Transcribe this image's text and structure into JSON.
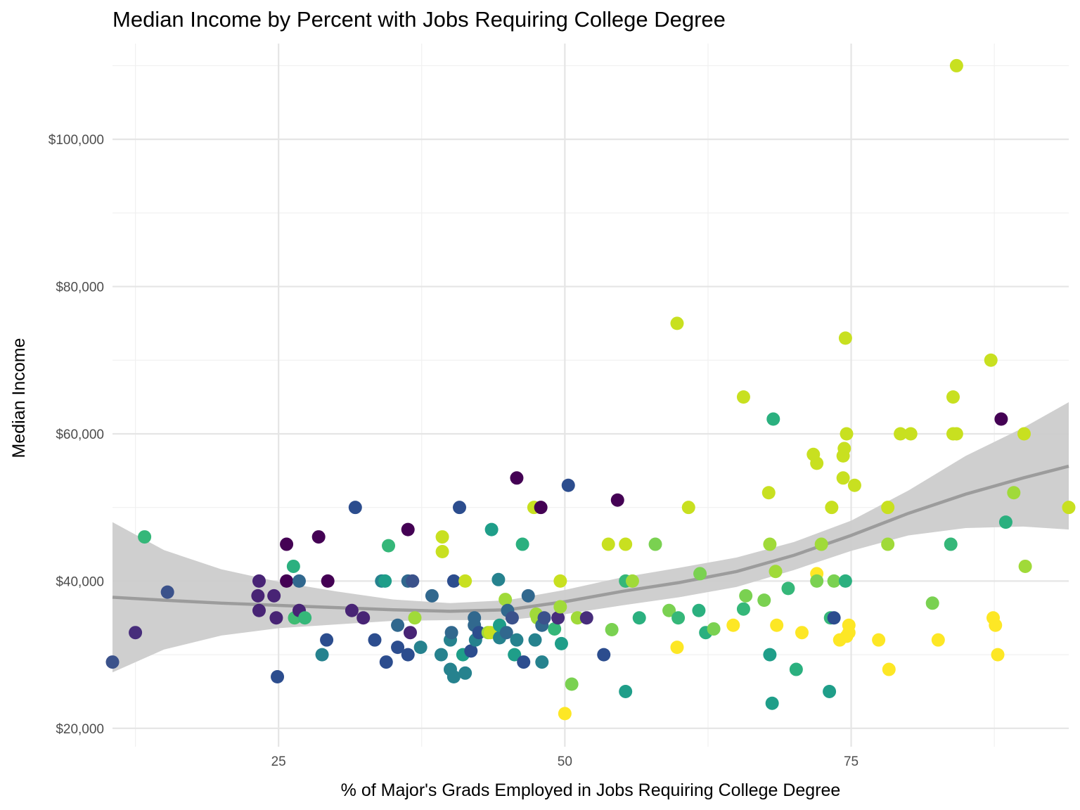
{
  "chart_data": {
    "type": "scatter",
    "title": "Median Income by Percent with Jobs Requiring College Degree",
    "xlabel": "% of Major's Grads Employed in Jobs Requiring College Degree",
    "ylabel": "Median Income",
    "xlim": [
      10.5,
      94
    ],
    "ylim": [
      17500,
      113000
    ],
    "x_ticks": [
      25,
      50,
      75
    ],
    "x_tick_labels": [
      "25",
      "50",
      "75"
    ],
    "y_ticks": [
      20000,
      40000,
      60000,
      80000,
      100000
    ],
    "y_tick_labels": [
      "$20,000",
      "$40,000",
      "$60,000",
      "$80,000",
      "$100,000"
    ],
    "grid": true,
    "legend": "none",
    "smooth_color": "#999999",
    "band_color": "#cccccc",
    "points": [
      {
        "x": 10.5,
        "y": 29000,
        "color": "#3b528b"
      },
      {
        "x": 12.5,
        "y": 33000,
        "color": "#472d7b"
      },
      {
        "x": 13.3,
        "y": 46000,
        "color": "#35b779"
      },
      {
        "x": 15.3,
        "y": 38500,
        "color": "#3b528b"
      },
      {
        "x": 23.2,
        "y": 38000,
        "color": "#482475"
      },
      {
        "x": 23.3,
        "y": 36000,
        "color": "#482475"
      },
      {
        "x": 23.3,
        "y": 40000,
        "color": "#482475"
      },
      {
        "x": 24.6,
        "y": 38000,
        "color": "#482475"
      },
      {
        "x": 24.8,
        "y": 35000,
        "color": "#482475"
      },
      {
        "x": 24.9,
        "y": 27000,
        "color": "#2c4d8e"
      },
      {
        "x": 25.7,
        "y": 45000,
        "color": "#440154"
      },
      {
        "x": 25.7,
        "y": 40000,
        "color": "#440154"
      },
      {
        "x": 26.3,
        "y": 42000,
        "color": "#2bb07f"
      },
      {
        "x": 26.4,
        "y": 35000,
        "color": "#3fbc73"
      },
      {
        "x": 26.8,
        "y": 40000,
        "color": "#31688e"
      },
      {
        "x": 26.8,
        "y": 36000,
        "color": "#482475"
      },
      {
        "x": 27.3,
        "y": 35000,
        "color": "#35b779"
      },
      {
        "x": 28.5,
        "y": 46000,
        "color": "#440154"
      },
      {
        "x": 28.8,
        "y": 30000,
        "color": "#26828e"
      },
      {
        "x": 29.2,
        "y": 32000,
        "color": "#2c4d8e"
      },
      {
        "x": 29.3,
        "y": 40000,
        "color": "#440154"
      },
      {
        "x": 31.4,
        "y": 36000,
        "color": "#482475"
      },
      {
        "x": 31.7,
        "y": 50000,
        "color": "#2c4d8e"
      },
      {
        "x": 32.4,
        "y": 35000,
        "color": "#482475"
      },
      {
        "x": 33.4,
        "y": 32000,
        "color": "#2c4d8e"
      },
      {
        "x": 34.0,
        "y": 40000,
        "color": "#26828e"
      },
      {
        "x": 34.3,
        "y": 40000,
        "color": "#1f9e89"
      },
      {
        "x": 34.4,
        "y": 29000,
        "color": "#2c4d8e"
      },
      {
        "x": 34.6,
        "y": 44800,
        "color": "#35b779"
      },
      {
        "x": 35.4,
        "y": 34000,
        "color": "#31688e"
      },
      {
        "x": 35.4,
        "y": 31000,
        "color": "#2c4d8e"
      },
      {
        "x": 36.3,
        "y": 47000,
        "color": "#440154"
      },
      {
        "x": 36.3,
        "y": 40000,
        "color": "#31688e"
      },
      {
        "x": 36.3,
        "y": 30000,
        "color": "#2c4d8e"
      },
      {
        "x": 36.5,
        "y": 33000,
        "color": "#482475"
      },
      {
        "x": 36.7,
        "y": 40000,
        "color": "#3b528b"
      },
      {
        "x": 36.9,
        "y": 35000,
        "color": "#a0da39"
      },
      {
        "x": 37.4,
        "y": 31000,
        "color": "#26828e"
      },
      {
        "x": 38.4,
        "y": 38000,
        "color": "#31688e"
      },
      {
        "x": 39.2,
        "y": 30000,
        "color": "#26828e"
      },
      {
        "x": 39.3,
        "y": 46000,
        "color": "#c8e020"
      },
      {
        "x": 39.3,
        "y": 44000,
        "color": "#c8e020"
      },
      {
        "x": 40.0,
        "y": 28000,
        "color": "#26828e"
      },
      {
        "x": 40.0,
        "y": 32000,
        "color": "#26828e"
      },
      {
        "x": 40.1,
        "y": 33000,
        "color": "#31688e"
      },
      {
        "x": 40.3,
        "y": 27000,
        "color": "#26828e"
      },
      {
        "x": 40.3,
        "y": 40000,
        "color": "#2c4d8e"
      },
      {
        "x": 40.8,
        "y": 50000,
        "color": "#2c4d8e"
      },
      {
        "x": 41.1,
        "y": 30000,
        "color": "#1f9e89"
      },
      {
        "x": 41.3,
        "y": 40000,
        "color": "#c8e020"
      },
      {
        "x": 41.3,
        "y": 27500,
        "color": "#26828e"
      },
      {
        "x": 41.8,
        "y": 30500,
        "color": "#2c4d8e"
      },
      {
        "x": 42.1,
        "y": 35000,
        "color": "#31688e"
      },
      {
        "x": 42.1,
        "y": 34000,
        "color": "#31688e"
      },
      {
        "x": 42.2,
        "y": 32000,
        "color": "#26828e"
      },
      {
        "x": 42.5,
        "y": 33000,
        "color": "#2c4d8e"
      },
      {
        "x": 43.3,
        "y": 33000,
        "color": "#a0da39"
      },
      {
        "x": 43.5,
        "y": 33000,
        "color": "#c8e020"
      },
      {
        "x": 43.6,
        "y": 47000,
        "color": "#1f9e89"
      },
      {
        "x": 44.2,
        "y": 40200,
        "color": "#26828e"
      },
      {
        "x": 44.3,
        "y": 32300,
        "color": "#26828e"
      },
      {
        "x": 44.3,
        "y": 34000,
        "color": "#1f9e89"
      },
      {
        "x": 44.8,
        "y": 37500,
        "color": "#a0da39"
      },
      {
        "x": 44.9,
        "y": 33000,
        "color": "#31688e"
      },
      {
        "x": 45.0,
        "y": 36000,
        "color": "#31688e"
      },
      {
        "x": 45.4,
        "y": 35000,
        "color": "#3b528b"
      },
      {
        "x": 45.6,
        "y": 30000,
        "color": "#1f9e89"
      },
      {
        "x": 45.8,
        "y": 32000,
        "color": "#26828e"
      },
      {
        "x": 45.8,
        "y": 54000,
        "color": "#440154"
      },
      {
        "x": 46.3,
        "y": 45000,
        "color": "#2bb07f"
      },
      {
        "x": 46.4,
        "y": 29000,
        "color": "#2c4d8e"
      },
      {
        "x": 46.8,
        "y": 38000,
        "color": "#31688e"
      },
      {
        "x": 47.3,
        "y": 50000,
        "color": "#c8e020"
      },
      {
        "x": 47.4,
        "y": 32000,
        "color": "#26828e"
      },
      {
        "x": 47.5,
        "y": 35500,
        "color": "#a0da39"
      },
      {
        "x": 47.6,
        "y": 35000,
        "color": "#a0da39"
      },
      {
        "x": 47.9,
        "y": 50000,
        "color": "#440154"
      },
      {
        "x": 48.0,
        "y": 34000,
        "color": "#31688e"
      },
      {
        "x": 48.0,
        "y": 29000,
        "color": "#26828e"
      },
      {
        "x": 48.2,
        "y": 35000,
        "color": "#3b528b"
      },
      {
        "x": 49.1,
        "y": 33500,
        "color": "#35b779"
      },
      {
        "x": 49.4,
        "y": 35000,
        "color": "#472d7b"
      },
      {
        "x": 49.6,
        "y": 40000,
        "color": "#c8e020"
      },
      {
        "x": 49.6,
        "y": 36500,
        "color": "#a0da39"
      },
      {
        "x": 49.7,
        "y": 31500,
        "color": "#1f9e89"
      },
      {
        "x": 50.3,
        "y": 53000,
        "color": "#2c4d8e"
      },
      {
        "x": 50.6,
        "y": 26000,
        "color": "#7ad151"
      },
      {
        "x": 51.1,
        "y": 35000,
        "color": "#a0da39"
      },
      {
        "x": 51.9,
        "y": 35000,
        "color": "#472d7b"
      },
      {
        "x": 50.0,
        "y": 22000,
        "color": "#fde725"
      },
      {
        "x": 53.4,
        "y": 30000,
        "color": "#2c4d8e"
      },
      {
        "x": 53.8,
        "y": 45000,
        "color": "#c8e020"
      },
      {
        "x": 54.1,
        "y": 33400,
        "color": "#7ad151"
      },
      {
        "x": 54.6,
        "y": 51000,
        "color": "#440154"
      },
      {
        "x": 55.3,
        "y": 25000,
        "color": "#1f9e89"
      },
      {
        "x": 55.3,
        "y": 45000,
        "color": "#c8e020"
      },
      {
        "x": 55.3,
        "y": 40000,
        "color": "#35b779"
      },
      {
        "x": 55.9,
        "y": 40000,
        "color": "#a0da39"
      },
      {
        "x": 56.5,
        "y": 35000,
        "color": "#2bb07f"
      },
      {
        "x": 57.9,
        "y": 45000,
        "color": "#7ad151"
      },
      {
        "x": 59.1,
        "y": 36000,
        "color": "#7ad151"
      },
      {
        "x": 59.8,
        "y": 75000,
        "color": "#c8e020"
      },
      {
        "x": 59.8,
        "y": 31000,
        "color": "#fde725"
      },
      {
        "x": 59.9,
        "y": 35000,
        "color": "#35b779"
      },
      {
        "x": 60.8,
        "y": 50000,
        "color": "#c8e020"
      },
      {
        "x": 61.7,
        "y": 36000,
        "color": "#2bb07f"
      },
      {
        "x": 61.8,
        "y": 41000,
        "color": "#7ad151"
      },
      {
        "x": 62.3,
        "y": 33000,
        "color": "#2bb07f"
      },
      {
        "x": 63.0,
        "y": 33500,
        "color": "#7ad151"
      },
      {
        "x": 64.7,
        "y": 34000,
        "color": "#fde725"
      },
      {
        "x": 65.6,
        "y": 65000,
        "color": "#c8e020"
      },
      {
        "x": 65.6,
        "y": 36200,
        "color": "#35b779"
      },
      {
        "x": 65.8,
        "y": 38000,
        "color": "#7ad151"
      },
      {
        "x": 67.4,
        "y": 37400,
        "color": "#7ad151"
      },
      {
        "x": 67.8,
        "y": 52000,
        "color": "#c8e020"
      },
      {
        "x": 67.9,
        "y": 45000,
        "color": "#a0da39"
      },
      {
        "x": 67.9,
        "y": 30000,
        "color": "#1f9e89"
      },
      {
        "x": 68.1,
        "y": 23400,
        "color": "#1f9e89"
      },
      {
        "x": 68.2,
        "y": 62000,
        "color": "#2bb07f"
      },
      {
        "x": 68.4,
        "y": 41300,
        "color": "#a0da39"
      },
      {
        "x": 68.5,
        "y": 34000,
        "color": "#fde725"
      },
      {
        "x": 69.5,
        "y": 39000,
        "color": "#35b779"
      },
      {
        "x": 70.2,
        "y": 28000,
        "color": "#2bb07f"
      },
      {
        "x": 70.7,
        "y": 33000,
        "color": "#fde725"
      },
      {
        "x": 71.7,
        "y": 57200,
        "color": "#c8e020"
      },
      {
        "x": 72.0,
        "y": 56000,
        "color": "#c8e020"
      },
      {
        "x": 72.0,
        "y": 41000,
        "color": "#fde725"
      },
      {
        "x": 72.0,
        "y": 40000,
        "color": "#7ad151"
      },
      {
        "x": 72.4,
        "y": 45000,
        "color": "#a0da39"
      },
      {
        "x": 73.1,
        "y": 25000,
        "color": "#1f9e89"
      },
      {
        "x": 73.2,
        "y": 35000,
        "color": "#35b779"
      },
      {
        "x": 73.3,
        "y": 50000,
        "color": "#c8e020"
      },
      {
        "x": 73.5,
        "y": 40000,
        "color": "#7ad151"
      },
      {
        "x": 73.5,
        "y": 35000,
        "color": "#2c4d8e"
      },
      {
        "x": 74.0,
        "y": 32000,
        "color": "#fde725"
      },
      {
        "x": 74.3,
        "y": 54000,
        "color": "#c8e020"
      },
      {
        "x": 74.3,
        "y": 57000,
        "color": "#c8e020"
      },
      {
        "x": 74.4,
        "y": 58000,
        "color": "#c8e020"
      },
      {
        "x": 74.5,
        "y": 73000,
        "color": "#c8e020"
      },
      {
        "x": 74.6,
        "y": 60000,
        "color": "#c8e020"
      },
      {
        "x": 74.5,
        "y": 40000,
        "color": "#2bb07f"
      },
      {
        "x": 74.6,
        "y": 32500,
        "color": "#fde725"
      },
      {
        "x": 74.8,
        "y": 33000,
        "color": "#fde725"
      },
      {
        "x": 74.8,
        "y": 34000,
        "color": "#fde725"
      },
      {
        "x": 75.3,
        "y": 53000,
        "color": "#c8e020"
      },
      {
        "x": 77.4,
        "y": 32000,
        "color": "#fde725"
      },
      {
        "x": 78.2,
        "y": 50000,
        "color": "#c8e020"
      },
      {
        "x": 78.2,
        "y": 45000,
        "color": "#a0da39"
      },
      {
        "x": 78.3,
        "y": 28000,
        "color": "#fde725"
      },
      {
        "x": 79.3,
        "y": 60000,
        "color": "#c8e020"
      },
      {
        "x": 80.2,
        "y": 60000,
        "color": "#c8e020"
      },
      {
        "x": 82.1,
        "y": 37000,
        "color": "#7ad151"
      },
      {
        "x": 82.6,
        "y": 32000,
        "color": "#fde725"
      },
      {
        "x": 83.7,
        "y": 45000,
        "color": "#35b779"
      },
      {
        "x": 83.9,
        "y": 65000,
        "color": "#c8e020"
      },
      {
        "x": 83.9,
        "y": 60000,
        "color": "#c8e020"
      },
      {
        "x": 84.2,
        "y": 110000,
        "color": "#c8e020"
      },
      {
        "x": 84.2,
        "y": 60000,
        "color": "#c8e020"
      },
      {
        "x": 87.2,
        "y": 70000,
        "color": "#c8e020"
      },
      {
        "x": 87.4,
        "y": 35000,
        "color": "#fde725"
      },
      {
        "x": 87.6,
        "y": 34000,
        "color": "#fde725"
      },
      {
        "x": 87.8,
        "y": 30000,
        "color": "#fde725"
      },
      {
        "x": 88.1,
        "y": 62000,
        "color": "#440154"
      },
      {
        "x": 88.5,
        "y": 48000,
        "color": "#2bb07f"
      },
      {
        "x": 89.2,
        "y": 52000,
        "color": "#a0da39"
      },
      {
        "x": 90.1,
        "y": 60000,
        "color": "#c8e020"
      },
      {
        "x": 90.2,
        "y": 42000,
        "color": "#a0da39"
      },
      {
        "x": 94.0,
        "y": 50000,
        "color": "#c8e020"
      }
    ],
    "smooth_line": {
      "x": [
        10.5,
        15,
        20,
        25,
        30,
        35,
        40,
        45,
        50,
        55,
        60,
        65,
        70,
        75,
        80,
        85,
        90,
        94
      ],
      "y": [
        37800,
        37400,
        37000,
        36700,
        36400,
        36100,
        35900,
        36100,
        37200,
        38600,
        39800,
        41300,
        43500,
        46200,
        49200,
        51800,
        54000,
        55600
      ]
    },
    "confidence_band": {
      "x": [
        10.5,
        15,
        20,
        25,
        30,
        35,
        40,
        45,
        50,
        55,
        60,
        65,
        70,
        75,
        80,
        85,
        90,
        94
      ],
      "upper": [
        48000,
        44200,
        41600,
        39900,
        38600,
        37500,
        37000,
        37400,
        38800,
        40500,
        41800,
        43200,
        45300,
        48200,
        52300,
        57000,
        60800,
        64300
      ],
      "lower": [
        27600,
        30700,
        32600,
        33600,
        34100,
        34600,
        34700,
        34700,
        35500,
        36700,
        37800,
        39200,
        41500,
        44100,
        46200,
        47200,
        47400,
        47000
      ]
    }
  }
}
